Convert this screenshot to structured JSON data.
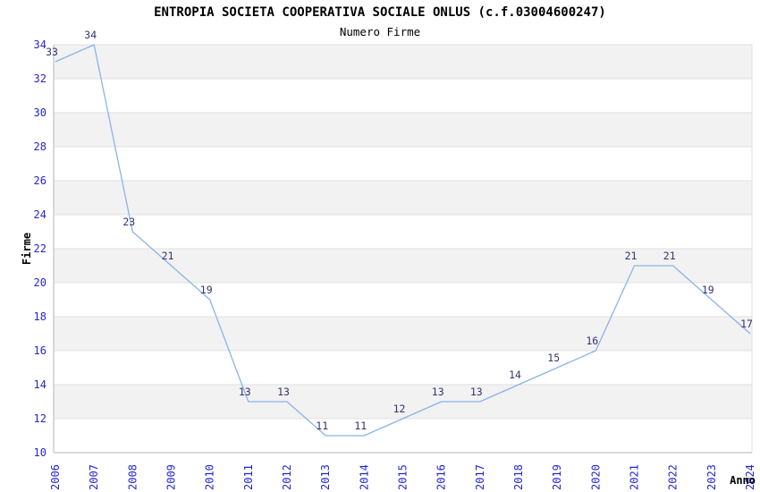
{
  "chart_data": {
    "type": "line",
    "title": "ENTROPIA SOCIETA COOPERATIVA SOCIALE ONLUS (c.f.03004600247)",
    "subtitle": "Numero Firme",
    "xlabel": "Anno",
    "ylabel": "Firme",
    "categories": [
      "2006",
      "2007",
      "2008",
      "2009",
      "2010",
      "2011",
      "2012",
      "2013",
      "2014",
      "2015",
      "2016",
      "2017",
      "2018",
      "2019",
      "2020",
      "2021",
      "2022",
      "2023",
      "2024"
    ],
    "values": [
      33,
      34,
      23,
      21,
      19,
      13,
      13,
      11,
      11,
      12,
      13,
      13,
      14,
      15,
      16,
      21,
      21,
      19,
      17
    ],
    "ylim": [
      10,
      34
    ],
    "ytick_step": 2,
    "grid": true,
    "legend": "none",
    "colors": {
      "line": "#8ab4e8",
      "tick_label": "#2525cc",
      "point_label": "#333370",
      "band": "#f2f2f2",
      "gridline": "#e0e0e0",
      "axis": "#c2c2c2",
      "title": "#000000"
    }
  }
}
